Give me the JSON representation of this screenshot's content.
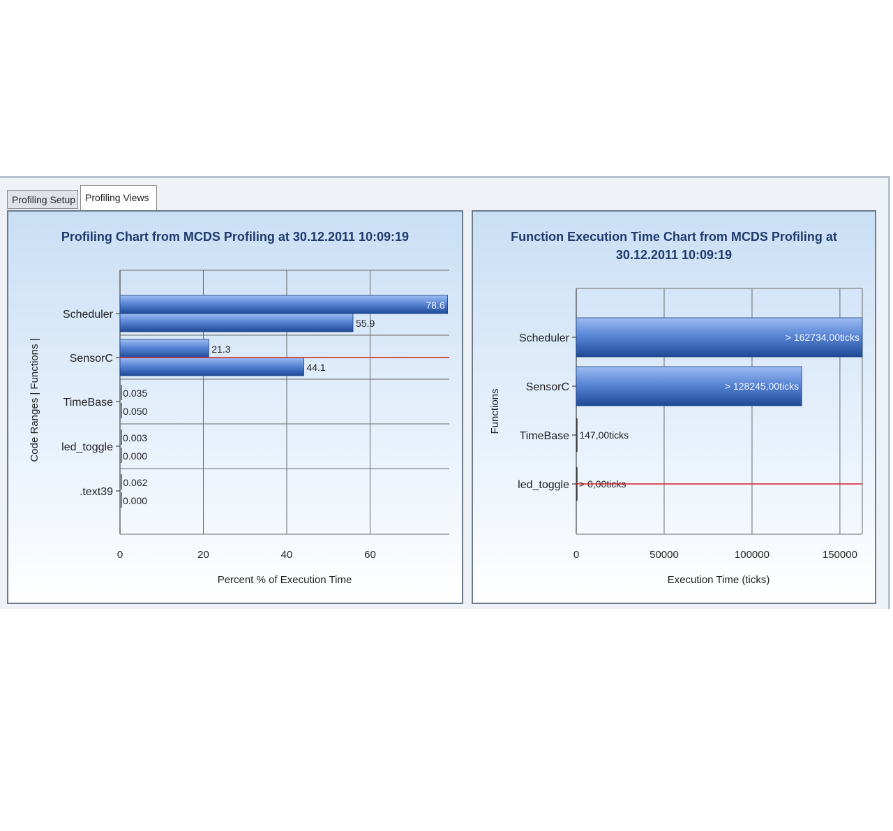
{
  "tabs": [
    {
      "label": "Profiling Setup",
      "active": false
    },
    {
      "label": "Profiling Views",
      "active": true
    }
  ],
  "colors": {
    "bar_light": "#9dbdf2",
    "bar_dark": "#1f4a98",
    "threshold_line": "#d21f2a",
    "title": "#1f3a6b"
  },
  "chart_data": [
    {
      "type": "bar",
      "orientation": "horizontal",
      "title": "Profiling Chart from MCDS Profiling at 30.12.2011 10:09:19",
      "xlabel": "Percent % of Execution Time",
      "ylabel": "Code Ranges | Functions |",
      "categories": [
        "Scheduler",
        "SensorC",
        "TimeBase",
        "led_toggle",
        ".text39"
      ],
      "series": [
        {
          "values": [
            78.6,
            21.3,
            0.035,
            0.003,
            0.062
          ],
          "labels": [
            "78.6",
            "21.3",
            "0.035",
            "0.003",
            "0.062"
          ]
        },
        {
          "values": [
            55.9,
            44.1,
            0.05,
            0.0,
            0.0
          ],
          "labels": [
            "55.9",
            "44.1",
            "0.050",
            "0.000",
            "0.000"
          ]
        }
      ],
      "xlim": [
        0,
        79
      ],
      "xticks": [
        0,
        20,
        40,
        60
      ],
      "xtick_labels": [
        "0",
        "20",
        "40",
        "60"
      ],
      "grid": true,
      "threshold_at_category": "SensorC"
    },
    {
      "type": "bar",
      "orientation": "horizontal",
      "title": "Function Execution Time Chart from MCDS Profiling at 30.12.2011 10:09:19",
      "xlabel": "Execution Time (ticks)",
      "ylabel": "Functions",
      "categories": [
        "Scheduler",
        "SensorC",
        "TimeBase",
        "led_toggle"
      ],
      "values": [
        162734,
        128245,
        147,
        0
      ],
      "labels": [
        "> 162734,00ticks",
        "> 128245,00ticks",
        "147,00ticks",
        "> 0,00ticks"
      ],
      "xlim": [
        0,
        162734
      ],
      "xticks": [
        0,
        50000,
        100000,
        150000
      ],
      "xtick_labels": [
        "0",
        "50000",
        "100000",
        "150000"
      ],
      "grid": true,
      "threshold_at_category": "led_toggle"
    }
  ]
}
